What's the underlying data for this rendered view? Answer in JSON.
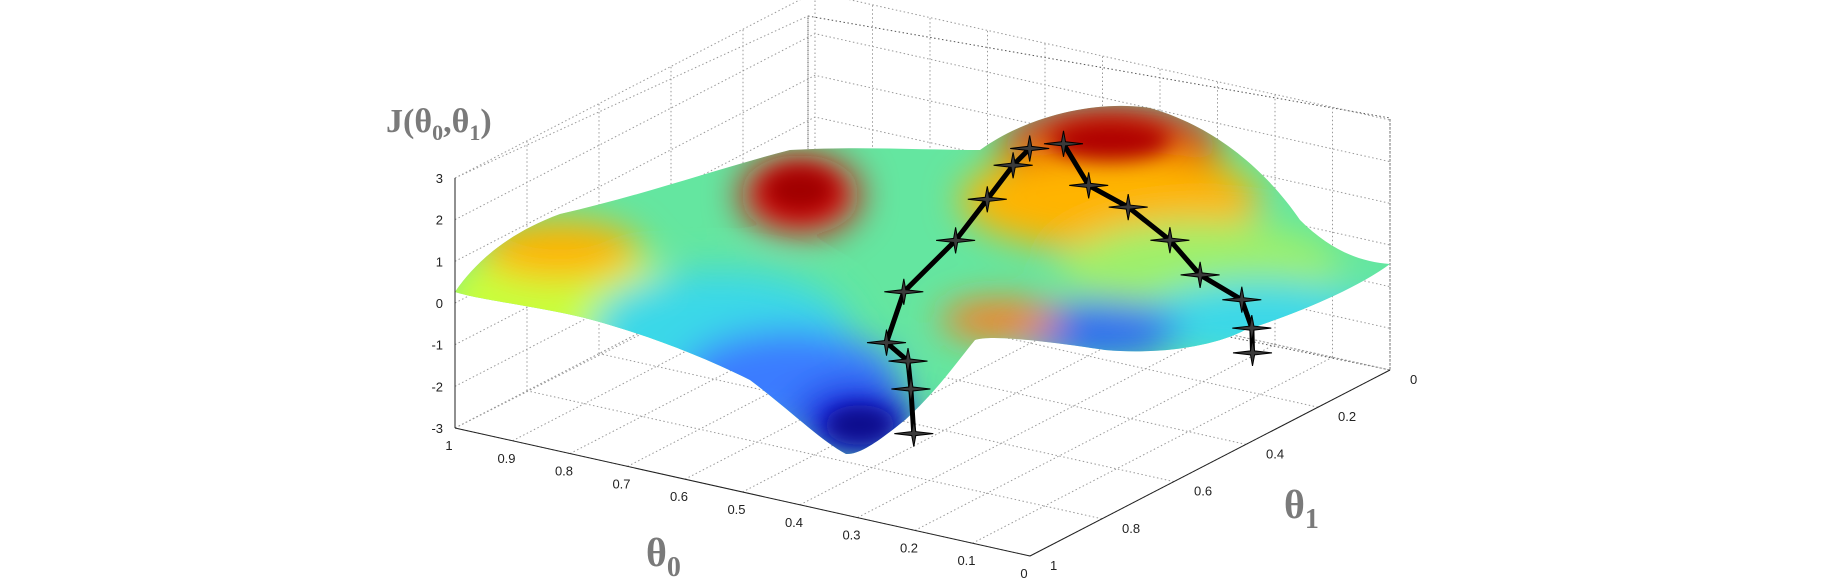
{
  "chart_data": {
    "type": "surface",
    "title": "",
    "zlabel": {
      "main": "J(θ",
      "sub0": "0",
      "comma": ",θ",
      "sub1": "1",
      "close": ")"
    },
    "xlabel": {
      "main": "θ",
      "sub": "0"
    },
    "ylabel": {
      "main": "θ",
      "sub": "1"
    },
    "theta0_ticks": [
      "1",
      "0.9",
      "0.8",
      "0.7",
      "0.6",
      "0.5",
      "0.4",
      "0.3",
      "0.2",
      "0.1",
      "0"
    ],
    "theta1_ticks": [
      "0",
      "0.2",
      "0.4",
      "0.6",
      "0.8",
      "1"
    ],
    "z_ticks": [
      "3",
      "2",
      "1",
      "0",
      "-1",
      "-2",
      "-3"
    ],
    "theta0_range": [
      0,
      1
    ],
    "theta1_range": [
      0,
      1
    ],
    "z_range": [
      -3,
      3
    ],
    "colormap": "jet",
    "grid": true,
    "descent_path_1": [
      {
        "theta0": 0.42,
        "theta1": 0.33,
        "J": 2.5
      },
      {
        "theta0": 0.43,
        "theta1": 0.36,
        "J": 2.2
      },
      {
        "theta0": 0.45,
        "theta1": 0.4,
        "J": 1.5
      },
      {
        "theta0": 0.48,
        "theta1": 0.44,
        "J": 0.6
      },
      {
        "theta0": 0.52,
        "theta1": 0.52,
        "J": -0.4
      },
      {
        "theta0": 0.5,
        "theta1": 0.6,
        "J": -1.2
      },
      {
        "theta0": 0.45,
        "theta1": 0.62,
        "J": -1.4
      },
      {
        "theta0": 0.42,
        "theta1": 0.66,
        "J": -1.8
      },
      {
        "theta0": 0.39,
        "theta1": 0.7,
        "J": -2.6
      }
    ],
    "descent_path_2": [
      {
        "theta0": 0.38,
        "theta1": 0.3,
        "J": 2.6
      },
      {
        "theta0": 0.33,
        "theta1": 0.31,
        "J": 1.8
      },
      {
        "theta0": 0.28,
        "theta1": 0.28,
        "J": 1.3
      },
      {
        "theta0": 0.22,
        "theta1": 0.26,
        "J": 0.6
      },
      {
        "theta0": 0.18,
        "theta1": 0.24,
        "J": -0.2
      },
      {
        "theta0": 0.12,
        "theta1": 0.22,
        "J": -0.7
      },
      {
        "theta0": 0.09,
        "theta1": 0.24,
        "J": -1.2
      },
      {
        "theta0": 0.07,
        "theta1": 0.27,
        "J": -1.6
      }
    ]
  }
}
